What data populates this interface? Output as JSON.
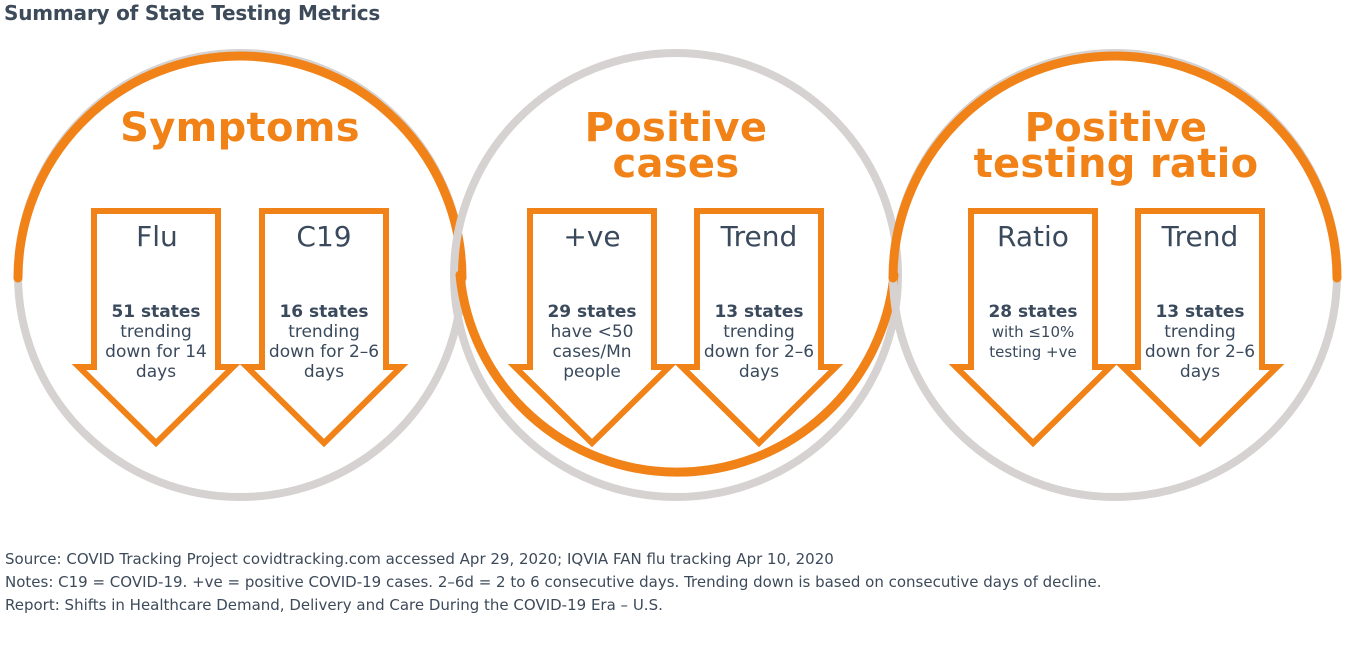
{
  "title": "Summary of State Testing Metrics",
  "colors": {
    "accent": "#f08217",
    "ring": "#d6d2d1",
    "text": "#3a4a5c"
  },
  "groups": [
    {
      "heading": "Symptoms",
      "arrows": [
        {
          "label": "Flu",
          "bold": "51 states",
          "text": "trending down for 14 days"
        },
        {
          "label": "C19",
          "bold": "16 states",
          "text": "trending down for 2–6 days"
        }
      ]
    },
    {
      "heading_line1": "Positive",
      "heading_line2": "cases",
      "arrows": [
        {
          "label": "+ve",
          "bold": "29 states",
          "text": "have <50 cases/Mn people"
        },
        {
          "label": "Trend",
          "bold": "13 states",
          "text": "trending down for 2–6 days"
        }
      ]
    },
    {
      "heading_line1": "Positive",
      "heading_line2": "testing ratio",
      "arrows": [
        {
          "label": "Ratio",
          "bold": "28 states",
          "text": "with ≤10% testing +ve"
        },
        {
          "label": "Trend",
          "bold": "13 states",
          "text": "trending down for 2–6 days"
        }
      ]
    }
  ],
  "footer": {
    "source": "Source: COVID Tracking Project covidtracking.com accessed Apr 29, 2020; IQVIA FAN flu tracking Apr 10, 2020",
    "notes": "Notes: C19 = COVID-19. +ve = positive COVID-19 cases. 2–6d = 2 to 6 consecutive days. Trending down is based on consecutive days of decline.",
    "report": "Report: Shifts in Healthcare Demand, Delivery and Care During the COVID-19 Era – U.S."
  }
}
